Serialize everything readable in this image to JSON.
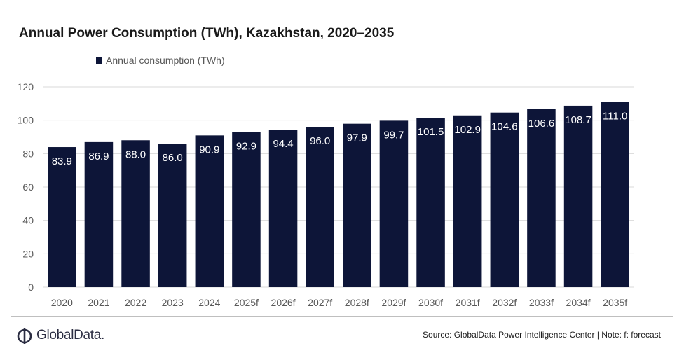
{
  "chart_data": {
    "type": "bar",
    "title": "Annual Power Consumption (TWh), Kazakhstan, 2020–2035",
    "categories": [
      "2020",
      "2021",
      "2022",
      "2023",
      "2024",
      "2025f",
      "2026f",
      "2027f",
      "2028f",
      "2029f",
      "2030f",
      "2031f",
      "2032f",
      "2033f",
      "2034f",
      "2035f"
    ],
    "series": [
      {
        "name": "Annual consumption (TWh)",
        "values": [
          83.9,
          86.9,
          88.0,
          86.0,
          90.9,
          92.9,
          94.4,
          96.0,
          97.9,
          99.7,
          101.5,
          102.9,
          104.6,
          106.6,
          108.7,
          111.0
        ],
        "data_labels": [
          "83.9",
          "86.9",
          "88.0",
          "86.0",
          "90.9",
          "92.9",
          "94.4",
          "96.0",
          "97.9",
          "99.7",
          "101.5",
          "102.9",
          "104.6",
          "106.6",
          "108.7",
          "111.0"
        ]
      }
    ],
    "yticks": [
      "0",
      "20",
      "40",
      "60",
      "80",
      "100",
      "120"
    ],
    "ylim": [
      0,
      120
    ],
    "grid": true,
    "legend_position": "top-left",
    "bar_color": "#0d1538",
    "label_color": "#ffffff"
  },
  "footer": {
    "brand": "GlobalData.",
    "source": "Source: GlobalData Power Intelligence Center | Note: f: forecast"
  },
  "colors": {
    "gridline": "#d9d9d9",
    "axis_text": "#595959",
    "logo": "#2b2d42"
  }
}
